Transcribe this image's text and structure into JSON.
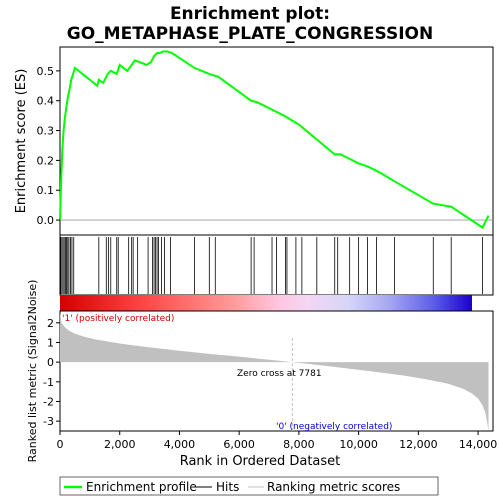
{
  "chart_data": {
    "type": "line",
    "title_line1": "Enrichment plot:",
    "title_line2": "GO_METAPHASE_PLATE_CONGRESSION",
    "ylabel_top": "Enrichment score (ES)",
    "ylabel_bottom": "Ranked list metric (Signal2Noise)",
    "xlabel": "Rank in Ordered Dataset",
    "xlim": [
      0,
      14500
    ],
    "x_ticks": [
      0,
      2000,
      4000,
      6000,
      8000,
      10000,
      12000,
      14000
    ],
    "x_tick_labels": [
      "0",
      "2,000",
      "4,000",
      "6,000",
      "8,000",
      "10,000",
      "12,000",
      "14,000"
    ],
    "es_ylim": [
      -0.05,
      0.58
    ],
    "es_ticks": [
      0.0,
      0.1,
      0.2,
      0.3,
      0.4,
      0.5
    ],
    "es_tick_labels": [
      "0.0",
      "0.1",
      "0.2",
      "0.3",
      "0.4",
      "0.5"
    ],
    "metric_ylim": [
      -3.5,
      2.6
    ],
    "metric_ticks": [
      2,
      1,
      0,
      -1,
      -2,
      -3
    ],
    "metric_tick_labels": [
      "2",
      "1",
      "0",
      "-1",
      "-2",
      "-3"
    ],
    "es_curve": {
      "x": [
        0,
        40,
        80,
        120,
        160,
        200,
        260,
        320,
        380,
        440,
        500,
        1250,
        1300,
        1450,
        1600,
        1700,
        1900,
        2000,
        2250,
        2400,
        2500,
        2650,
        2900,
        3050,
        3150,
        3250,
        3350,
        3450,
        3600,
        3750,
        4500,
        5000,
        5300,
        6400,
        6600,
        7500,
        8000,
        9200,
        9400,
        10000,
        10300,
        10700,
        11200,
        12500,
        13100,
        14150,
        14350
      ],
      "y": [
        0.0,
        0.14,
        0.24,
        0.3,
        0.34,
        0.37,
        0.41,
        0.44,
        0.47,
        0.49,
        0.51,
        0.45,
        0.47,
        0.46,
        0.49,
        0.5,
        0.49,
        0.52,
        0.5,
        0.52,
        0.535,
        0.53,
        0.52,
        0.53,
        0.55,
        0.56,
        0.56,
        0.565,
        0.565,
        0.56,
        0.51,
        0.49,
        0.48,
        0.4,
        0.395,
        0.35,
        0.32,
        0.22,
        0.22,
        0.19,
        0.18,
        0.16,
        0.13,
        0.055,
        0.045,
        -0.025,
        0.015
      ]
    },
    "hits": [
      20,
      60,
      100,
      140,
      180,
      220,
      260,
      300,
      350,
      400,
      460,
      1300,
      1550,
      1620,
      1700,
      1900,
      1950,
      2300,
      2400,
      2450,
      2600,
      2950,
      3100,
      3150,
      3200,
      3250,
      3300,
      3400,
      3500,
      3700,
      4500,
      5000,
      5200,
      6400,
      6500,
      7100,
      7250,
      7550,
      7600,
      7900,
      8100,
      8600,
      9200,
      9300,
      9700,
      10000,
      10300,
      10600,
      11200,
      12500,
      13100,
      14150
    ],
    "metric_curve": {
      "x": [
        0,
        50,
        150,
        300,
        500,
        800,
        1200,
        2000,
        3000,
        4000,
        5000,
        6000,
        7000,
        7781,
        8500,
        9500,
        10500,
        11500,
        12300,
        13000,
        13500,
        13800,
        14000,
        14150,
        14250,
        14300,
        14350
      ],
      "y": [
        2.5,
        2.0,
        1.8,
        1.6,
        1.45,
        1.3,
        1.15,
        0.95,
        0.75,
        0.58,
        0.42,
        0.28,
        0.12,
        0.0,
        -0.12,
        -0.3,
        -0.48,
        -0.68,
        -0.88,
        -1.1,
        -1.35,
        -1.6,
        -1.85,
        -2.2,
        -2.6,
        -3.0,
        -3.5
      ]
    },
    "zero_cross_rank": 7781,
    "zero_cross_label": "Zero cross at 7781",
    "pos_label": "'1' (positively correlated)",
    "neg_label": "'0' (negatively correlated)",
    "colors": {
      "es_line": "#00ff00",
      "hits": "#000000",
      "metric_fill": "#c0c0c0",
      "pos_label": "#cc0000",
      "neg_label": "#0000cc",
      "zero_line": "#c0c0c0"
    },
    "legend": [
      {
        "label": "Enrichment profile",
        "color": "#00ff00",
        "kind": "line-thick"
      },
      {
        "label": "Hits",
        "color": "#000000",
        "kind": "line"
      },
      {
        "label": "Ranking metric scores",
        "color": "#c0c0c0",
        "kind": "line"
      }
    ]
  }
}
